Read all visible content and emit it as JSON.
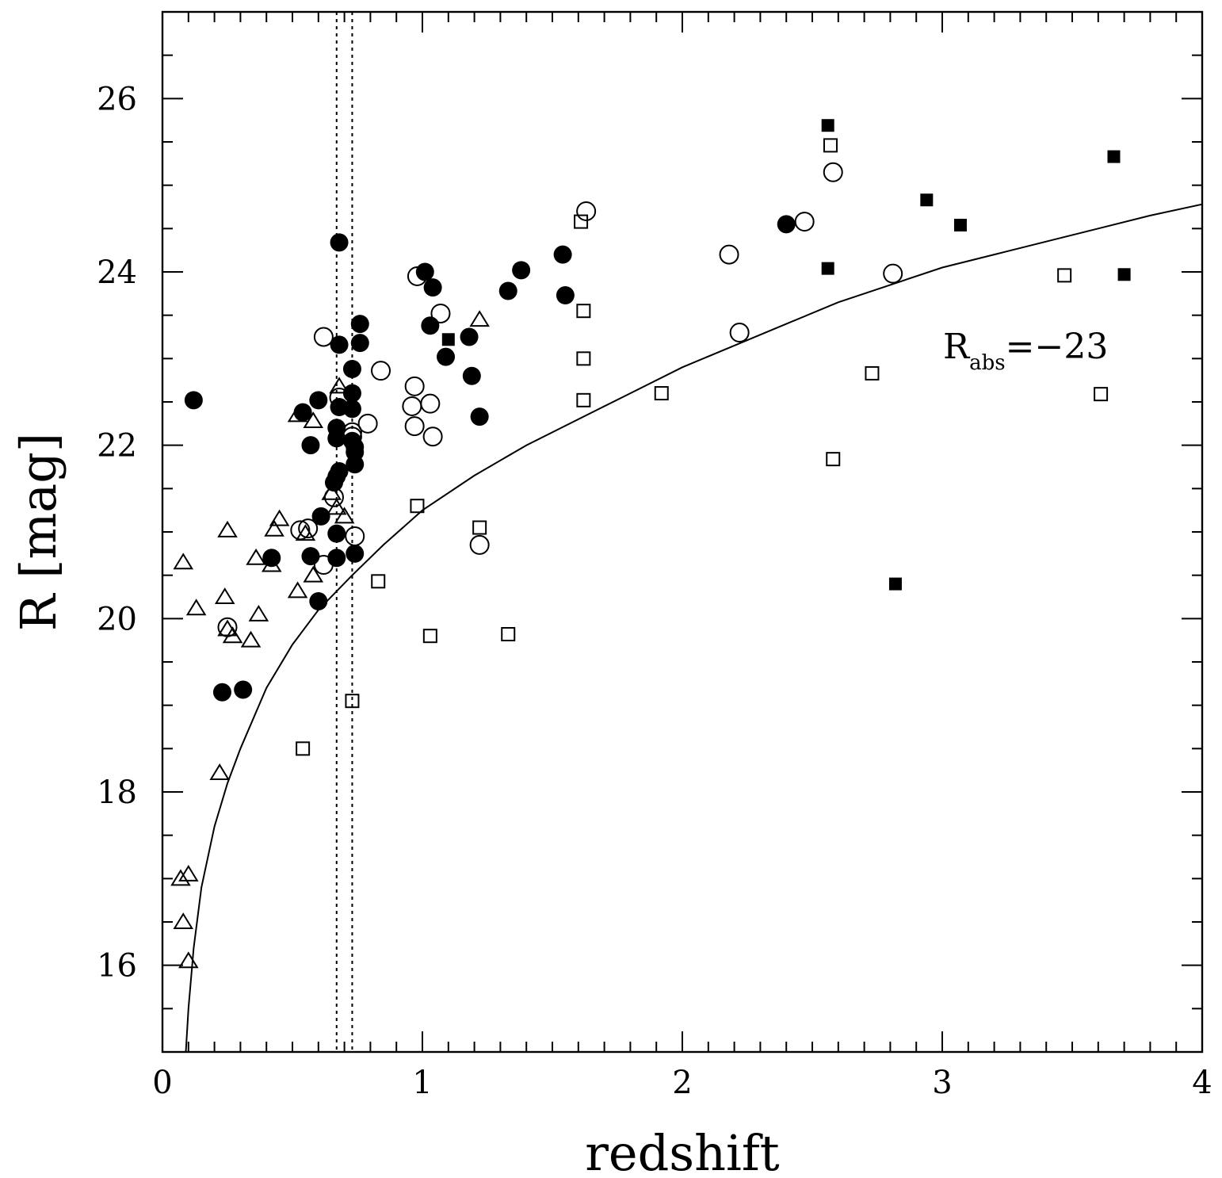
{
  "chart_data": {
    "type": "scatter",
    "xlabel": "redshift",
    "ylabel": "R [mag]",
    "xlim": [
      0,
      4
    ],
    "ylim": [
      15,
      27
    ],
    "x_ticks": [
      0,
      1,
      2,
      3,
      4
    ],
    "y_ticks": [
      16,
      18,
      20,
      22,
      24,
      26
    ],
    "x_tick_labels": [
      "0",
      "1",
      "2",
      "3",
      "4"
    ],
    "y_tick_labels": [
      "16",
      "18",
      "20",
      "22",
      "24",
      "26"
    ],
    "grid": false,
    "legend": "none",
    "annotation": {
      "main": "R",
      "sub": "abs",
      "rest": "=−23"
    },
    "reference_lines": [
      0.67,
      0.73
    ],
    "curve": {
      "points": [
        [
          0.09,
          15.0
        ],
        [
          0.1,
          15.5
        ],
        [
          0.12,
          16.2
        ],
        [
          0.15,
          16.9
        ],
        [
          0.2,
          17.6
        ],
        [
          0.25,
          18.1
        ],
        [
          0.3,
          18.5
        ],
        [
          0.4,
          19.2
        ],
        [
          0.5,
          19.7
        ],
        [
          0.6,
          20.1
        ],
        [
          0.73,
          20.5
        ],
        [
          0.85,
          20.85
        ],
        [
          1.0,
          21.25
        ],
        [
          1.2,
          21.65
        ],
        [
          1.4,
          22.0
        ],
        [
          1.6,
          22.3
        ],
        [
          1.8,
          22.6
        ],
        [
          2.0,
          22.9
        ],
        [
          2.2,
          23.15
        ],
        [
          2.4,
          23.4
        ],
        [
          2.6,
          23.65
        ],
        [
          2.8,
          23.85
        ],
        [
          3.0,
          24.05
        ],
        [
          3.2,
          24.2
        ],
        [
          3.4,
          24.35
        ],
        [
          3.6,
          24.5
        ],
        [
          3.8,
          24.65
        ],
        [
          4.0,
          24.78
        ]
      ]
    },
    "series": [
      {
        "marker": "filled-circle",
        "points": [
          [
            0.12,
            22.52
          ],
          [
            0.23,
            19.15
          ],
          [
            0.31,
            19.18
          ],
          [
            0.42,
            20.7
          ],
          [
            0.54,
            22.38
          ],
          [
            0.57,
            22.0
          ],
          [
            0.57,
            20.72
          ],
          [
            0.6,
            22.52
          ],
          [
            0.6,
            20.2
          ],
          [
            0.61,
            21.18
          ],
          [
            0.66,
            21.57
          ],
          [
            0.67,
            21.64
          ],
          [
            0.67,
            22.08
          ],
          [
            0.67,
            22.2
          ],
          [
            0.67,
            20.98
          ],
          [
            0.67,
            20.7
          ],
          [
            0.68,
            21.7
          ],
          [
            0.68,
            22.44
          ],
          [
            0.68,
            24.34
          ],
          [
            0.68,
            23.16
          ],
          [
            0.73,
            22.88
          ],
          [
            0.73,
            22.6
          ],
          [
            0.73,
            22.42
          ],
          [
            0.73,
            22.05
          ],
          [
            0.74,
            21.98
          ],
          [
            0.74,
            21.78
          ],
          [
            0.74,
            21.92
          ],
          [
            0.74,
            20.75
          ],
          [
            0.76,
            23.4
          ],
          [
            0.76,
            23.18
          ],
          [
            1.01,
            24.0
          ],
          [
            1.03,
            23.38
          ],
          [
            1.04,
            23.82
          ],
          [
            1.09,
            23.02
          ],
          [
            1.18,
            23.25
          ],
          [
            1.19,
            22.8
          ],
          [
            1.22,
            22.33
          ],
          [
            1.33,
            23.78
          ],
          [
            1.38,
            24.02
          ],
          [
            1.54,
            24.2
          ],
          [
            1.55,
            23.73
          ],
          [
            2.4,
            24.55
          ]
        ]
      },
      {
        "marker": "open-circle",
        "points": [
          [
            0.25,
            19.9
          ],
          [
            0.53,
            21.02
          ],
          [
            0.56,
            21.04
          ],
          [
            0.62,
            20.62
          ],
          [
            0.62,
            23.25
          ],
          [
            0.66,
            21.4
          ],
          [
            0.68,
            22.55
          ],
          [
            0.73,
            22.15
          ],
          [
            0.73,
            22.1
          ],
          [
            0.74,
            20.95
          ],
          [
            0.79,
            22.25
          ],
          [
            0.84,
            22.86
          ],
          [
            0.96,
            22.45
          ],
          [
            0.97,
            22.68
          ],
          [
            0.97,
            22.22
          ],
          [
            0.98,
            23.95
          ],
          [
            1.03,
            22.48
          ],
          [
            1.04,
            22.1
          ],
          [
            1.07,
            23.52
          ],
          [
            1.22,
            20.85
          ],
          [
            1.63,
            24.7
          ],
          [
            2.18,
            24.2
          ],
          [
            2.22,
            23.3
          ],
          [
            2.47,
            24.58
          ],
          [
            2.58,
            25.15
          ],
          [
            2.81,
            23.98
          ]
        ]
      },
      {
        "marker": "open-triangle",
        "points": [
          [
            0.07,
            17.0
          ],
          [
            0.08,
            16.5
          ],
          [
            0.08,
            20.65
          ],
          [
            0.1,
            17.05
          ],
          [
            0.1,
            16.05
          ],
          [
            0.13,
            20.12
          ],
          [
            0.22,
            18.22
          ],
          [
            0.24,
            20.25
          ],
          [
            0.25,
            21.02
          ],
          [
            0.25,
            19.88
          ],
          [
            0.27,
            19.8
          ],
          [
            0.34,
            19.75
          ],
          [
            0.36,
            20.7
          ],
          [
            0.37,
            20.05
          ],
          [
            0.42,
            20.62
          ],
          [
            0.43,
            21.03
          ],
          [
            0.45,
            21.15
          ],
          [
            0.52,
            20.32
          ],
          [
            0.52,
            22.35
          ],
          [
            0.55,
            20.98
          ],
          [
            0.58,
            20.5
          ],
          [
            0.58,
            22.28
          ],
          [
            0.65,
            21.45
          ],
          [
            0.67,
            21.28
          ],
          [
            0.68,
            22.68
          ],
          [
            0.7,
            21.18
          ],
          [
            1.22,
            23.45
          ]
        ]
      },
      {
        "marker": "open-square",
        "points": [
          [
            0.54,
            18.5
          ],
          [
            0.73,
            19.05
          ],
          [
            0.83,
            20.43
          ],
          [
            0.98,
            21.3
          ],
          [
            1.03,
            19.8
          ],
          [
            1.22,
            21.05
          ],
          [
            1.33,
            19.82
          ],
          [
            1.61,
            24.58
          ],
          [
            1.62,
            23.55
          ],
          [
            1.62,
            23.0
          ],
          [
            1.62,
            22.52
          ],
          [
            1.92,
            22.6
          ],
          [
            2.57,
            25.46
          ],
          [
            2.58,
            21.84
          ],
          [
            2.73,
            22.83
          ],
          [
            3.47,
            23.96
          ],
          [
            3.61,
            22.59
          ]
        ]
      },
      {
        "marker": "filled-square",
        "points": [
          [
            1.1,
            23.22
          ],
          [
            2.56,
            25.69
          ],
          [
            2.56,
            24.04
          ],
          [
            2.82,
            20.4
          ],
          [
            2.94,
            24.83
          ],
          [
            3.07,
            24.54
          ],
          [
            3.66,
            25.33
          ],
          [
            3.7,
            23.97
          ]
        ]
      }
    ]
  }
}
